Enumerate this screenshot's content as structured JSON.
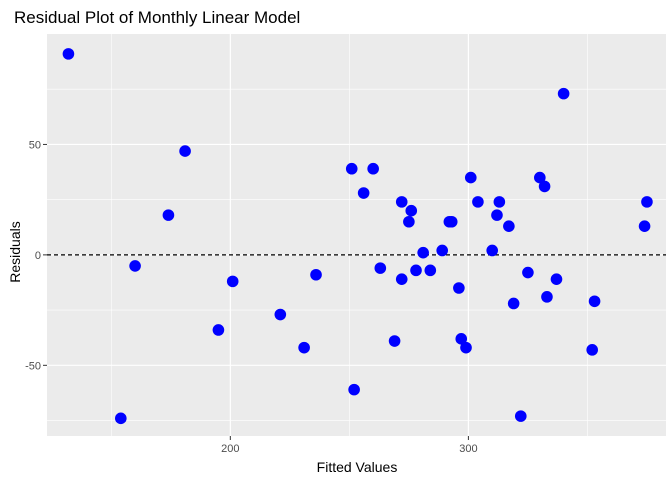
{
  "chart_data": {
    "type": "scatter",
    "title": "Residual Plot of Monthly Linear Model",
    "xlabel": "Fitted Values",
    "ylabel": "Residuals",
    "xlim": [
      123,
      383
    ],
    "ylim": [
      -82,
      100
    ],
    "x_ticks": [
      200,
      300
    ],
    "y_ticks": [
      -50,
      0,
      50
    ],
    "x_tick_labels": [
      "200",
      "300"
    ],
    "y_tick_labels": [
      "-50",
      "0",
      "50"
    ],
    "reference_line": {
      "y": 0,
      "style": "dashed"
    },
    "grid": true,
    "background": "#EBEBEB",
    "point_color": "#0000FF",
    "points": [
      {
        "x": 132,
        "y": 91
      },
      {
        "x": 154,
        "y": -74
      },
      {
        "x": 160,
        "y": -5
      },
      {
        "x": 174,
        "y": 18
      },
      {
        "x": 181,
        "y": 47
      },
      {
        "x": 195,
        "y": -34
      },
      {
        "x": 201,
        "y": -12
      },
      {
        "x": 221,
        "y": -27
      },
      {
        "x": 231,
        "y": -42
      },
      {
        "x": 236,
        "y": -9
      },
      {
        "x": 251,
        "y": 39
      },
      {
        "x": 252,
        "y": -61
      },
      {
        "x": 256,
        "y": 28
      },
      {
        "x": 260,
        "y": 39
      },
      {
        "x": 263,
        "y": -6
      },
      {
        "x": 269,
        "y": -39
      },
      {
        "x": 272,
        "y": -11
      },
      {
        "x": 272,
        "y": 24
      },
      {
        "x": 275,
        "y": 15
      },
      {
        "x": 276,
        "y": 20
      },
      {
        "x": 278,
        "y": -7
      },
      {
        "x": 281,
        "y": 1
      },
      {
        "x": 284,
        "y": -7
      },
      {
        "x": 289,
        "y": 2
      },
      {
        "x": 292,
        "y": 15
      },
      {
        "x": 293,
        "y": 15
      },
      {
        "x": 296,
        "y": -15
      },
      {
        "x": 297,
        "y": -38
      },
      {
        "x": 299,
        "y": -42
      },
      {
        "x": 301,
        "y": 35
      },
      {
        "x": 304,
        "y": 24
      },
      {
        "x": 310,
        "y": 2
      },
      {
        "x": 312,
        "y": 18
      },
      {
        "x": 313,
        "y": 24
      },
      {
        "x": 317,
        "y": 13
      },
      {
        "x": 319,
        "y": -22
      },
      {
        "x": 322,
        "y": -73
      },
      {
        "x": 325,
        "y": -8
      },
      {
        "x": 330,
        "y": 35
      },
      {
        "x": 332,
        "y": 31
      },
      {
        "x": 333,
        "y": -19
      },
      {
        "x": 337,
        "y": -11
      },
      {
        "x": 340,
        "y": 73
      },
      {
        "x": 352,
        "y": -43
      },
      {
        "x": 353,
        "y": -21
      },
      {
        "x": 374,
        "y": 13
      },
      {
        "x": 375,
        "y": 24
      }
    ]
  }
}
